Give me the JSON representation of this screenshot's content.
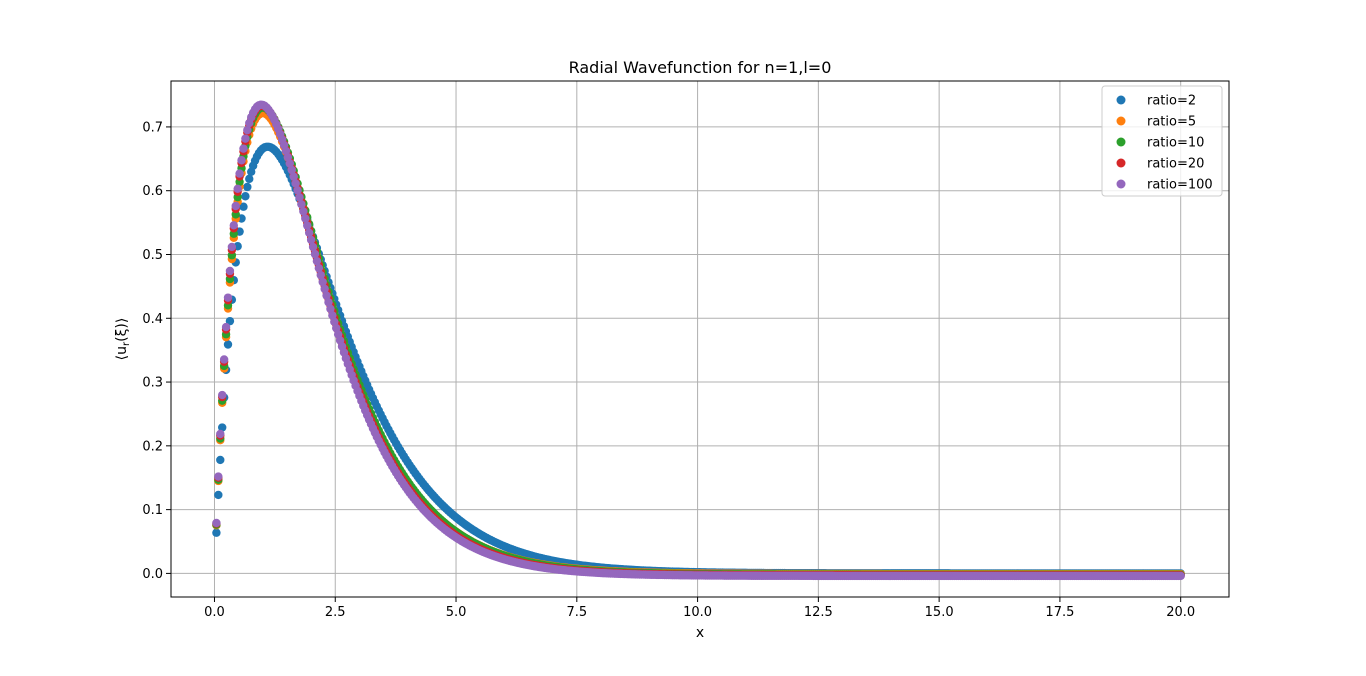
{
  "chart_data": {
    "type": "scatter",
    "title": "Radial Wavefunction for n=1,l=0",
    "xlabel": "x",
    "ylabel": "⟨u",
    "ylabel_sub": "r",
    "ylabel_tail": "(ξ)⟩",
    "xlim": [
      -0.9,
      21.0
    ],
    "ylim": [
      -0.037,
      0.772
    ],
    "x_ticks": [
      0.0,
      2.5,
      5.0,
      7.5,
      10.0,
      12.5,
      15.0,
      17.5,
      20.0
    ],
    "x_tick_labels": [
      "0.0",
      "2.5",
      "5.0",
      "7.5",
      "10.0",
      "12.5",
      "15.0",
      "17.5",
      "20.0"
    ],
    "y_ticks": [
      0.0,
      0.1,
      0.2,
      0.3,
      0.4,
      0.5,
      0.6,
      0.7
    ],
    "y_tick_labels": [
      "0.0",
      "0.1",
      "0.2",
      "0.3",
      "0.4",
      "0.5",
      "0.6",
      "0.7"
    ],
    "grid": true,
    "legend_position": "top-right",
    "x_range": [
      0.04,
      20.0
    ],
    "series": [
      {
        "name": "ratio=2",
        "color": "#1f77b4",
        "amplitude": 0.669,
        "peak_x": 1.1,
        "tail": 0.0
      },
      {
        "name": "ratio=5",
        "color": "#ff7f0e",
        "amplitude": 0.722,
        "peak_x": 1.0,
        "tail": -0.001
      },
      {
        "name": "ratio=10",
        "color": "#2ca02c",
        "amplitude": 0.731,
        "peak_x": 1.0,
        "tail": -0.002
      },
      {
        "name": "ratio=20",
        "color": "#d62728",
        "amplitude": 0.734,
        "peak_x": 0.98,
        "tail": -0.003
      },
      {
        "name": "ratio=100",
        "color": "#9467bd",
        "amplitude": 0.736,
        "peak_x": 0.97,
        "tail": -0.004
      }
    ]
  }
}
